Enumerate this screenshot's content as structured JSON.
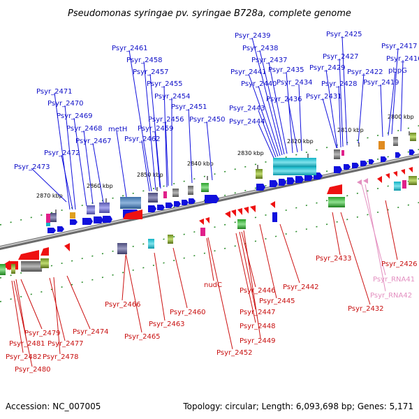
{
  "title": "Pseudomonas syringae pv. syringae B728a, complete genome",
  "footer": {
    "accession": "Accession: NC_007005",
    "summary": "Topology: circular; Length: 6,093,698 bp; Genes: 5,171"
  },
  "colors": {
    "forward": "#1010dd",
    "reverse": "#ee1111",
    "rna": "#e38fc0",
    "axis": "#808080",
    "ticks": "#228822"
  },
  "scale_labels": [
    "2870 kbp",
    "2860 kbp",
    "2850 kbp",
    "2840 kbp",
    "2830 kbp",
    "2820 kbp",
    "2810 kbp",
    "2800 kbp"
  ],
  "top_labels": [
    "Psyr_2473",
    "Psyr_2472",
    "Psyr_2471",
    "Psyr_2470",
    "Psyr_2469",
    "Psyr_2468",
    "Psyr_2467",
    "metH",
    "Psyr_2462",
    "Psyr_2461",
    "Psyr_2458",
    "Psyr_2457",
    "Psyr_2455",
    "Psyr_2454",
    "Psyr_2456",
    "Psyr_2459",
    "Psyr_2451",
    "Psyr_2450",
    "Psyr_2439",
    "Psyr_2438",
    "Psyr_2437",
    "Psyr_2441",
    "Psyr_2435",
    "Psyr_2440",
    "Psyr_2434",
    "Psyr_2436",
    "Psyr_2443",
    "Psyr_2444",
    "Psyr_2425",
    "Psyr_2427",
    "Psyr_2429",
    "Psyr_2428",
    "Psyr_2431",
    "Psyr_2422",
    "Psyr_2417",
    "Psyr_2416",
    "pbpG",
    "Psyr_2419"
  ],
  "bottom_labels": [
    "Psyr_2479",
    "Psyr_2481",
    "Psyr_2477",
    "Psyr_2482",
    "Psyr_2478",
    "Psyr_2480",
    "Psyr_2474",
    "Psyr_2466",
    "Psyr_2465",
    "Psyr_2463",
    "Psyr_2460",
    "nudC",
    "Psyr_2452",
    "Psyr_2446",
    "Psyr_2445",
    "Psyr_2447",
    "Psyr_2448",
    "Psyr_2449",
    "Psyr_2442",
    "Psyr_2433",
    "Psyr_2432",
    "Psyr_2426"
  ],
  "rna_labels": [
    "Psyr_RNA41",
    "Psyr_RNA42"
  ]
}
